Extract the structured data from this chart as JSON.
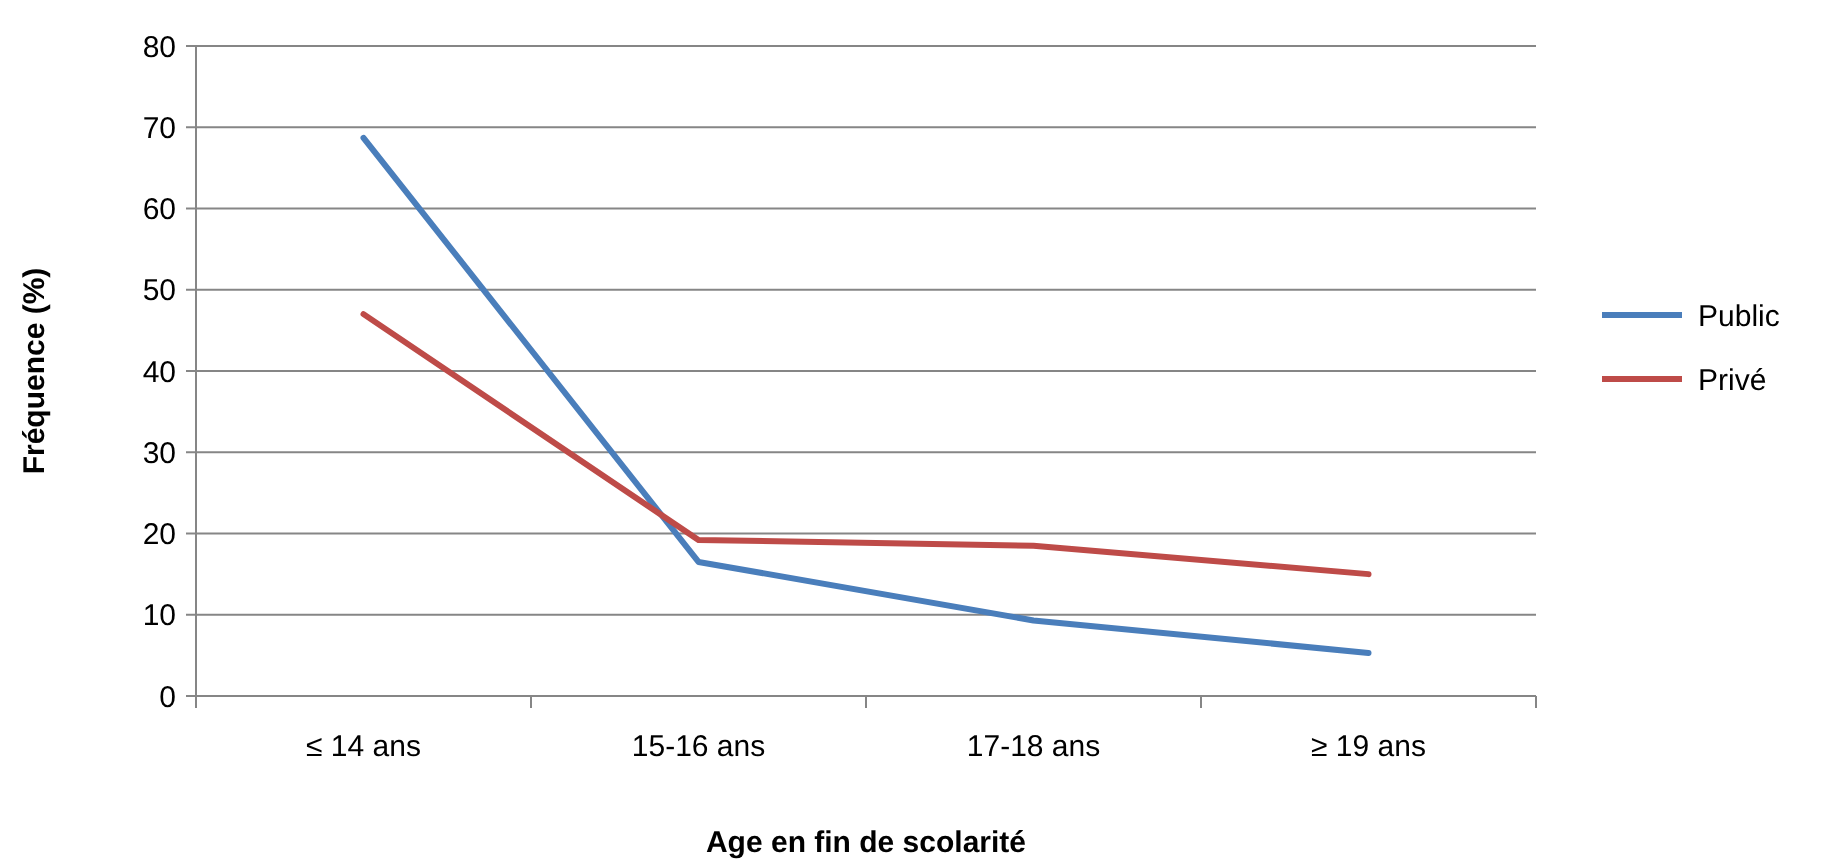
{
  "chart_data": {
    "type": "line",
    "xlabel": "Age en fin de scolarité",
    "ylabel": "Fréquence (%)",
    "categories": [
      "≤ 14 ans",
      "15-16 ans",
      "17-18 ans",
      "≥ 19 ans"
    ],
    "series": [
      {
        "name": "Public",
        "color": "#4a7ebb",
        "values": [
          68.7,
          16.5,
          9.3,
          5.3
        ]
      },
      {
        "name": "Privé",
        "color": "#be4b48",
        "values": [
          47,
          19.2,
          18.5,
          15
        ]
      }
    ],
    "ylim": [
      0,
      80
    ],
    "yticks": [
      0,
      10,
      20,
      30,
      40,
      50,
      60,
      70,
      80
    ],
    "grid": "y",
    "legend": "right",
    "marker": "none",
    "line_style": "solid"
  }
}
